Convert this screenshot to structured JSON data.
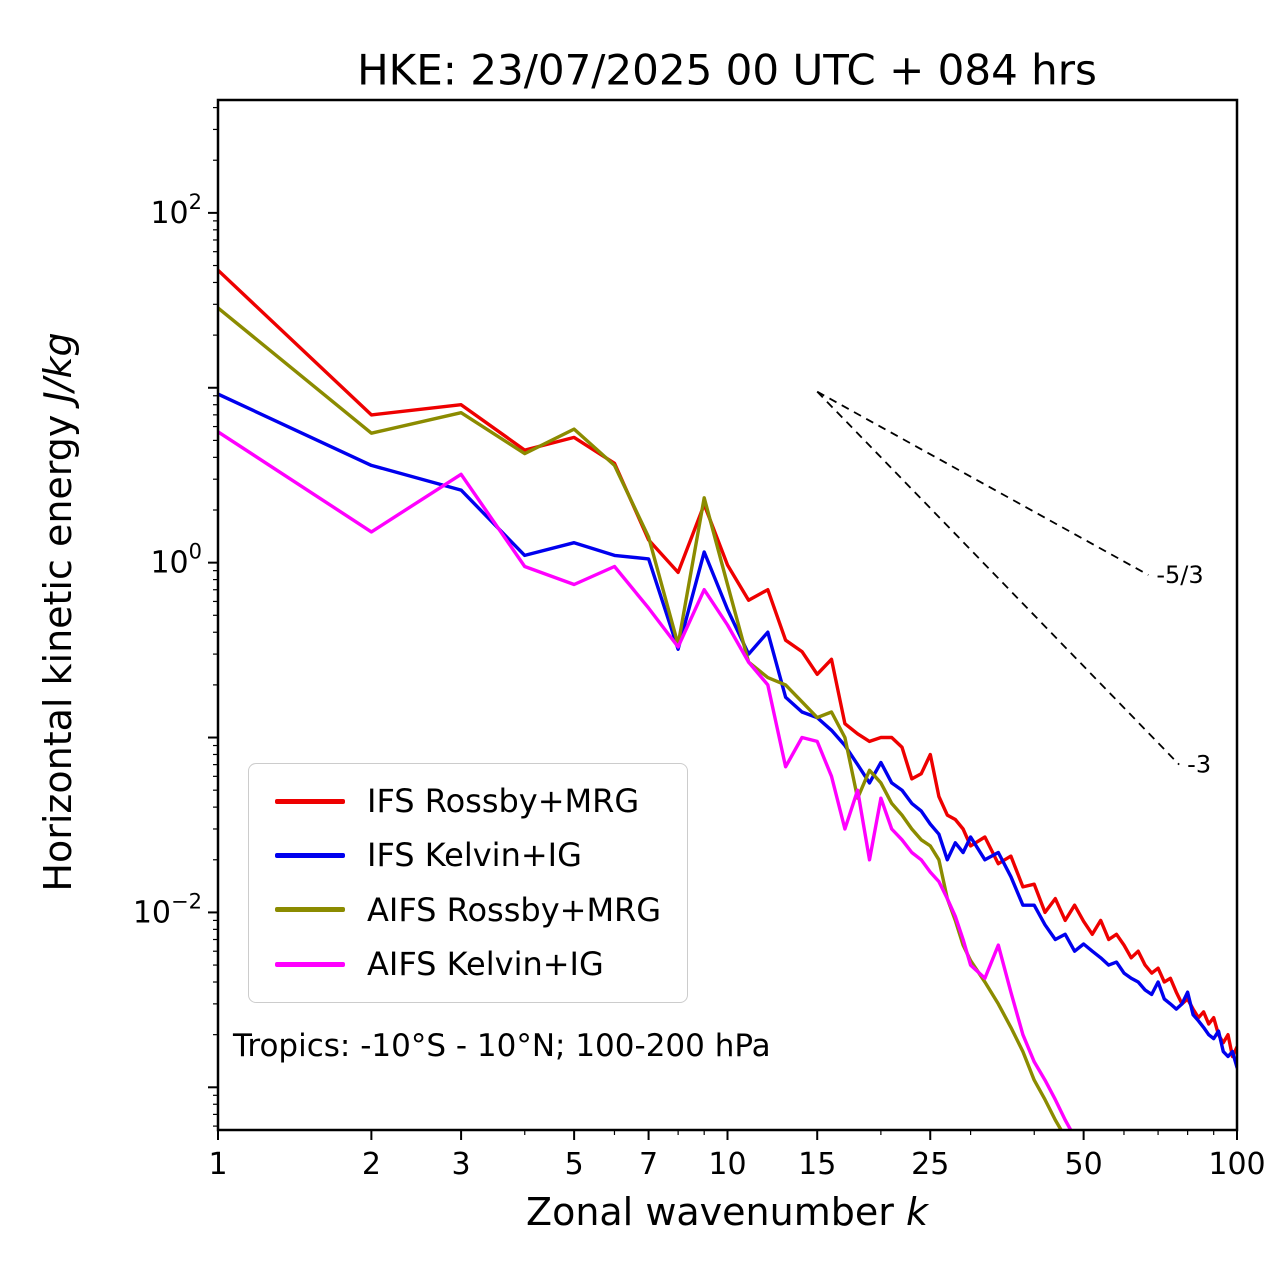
{
  "chart_data": {
    "type": "line",
    "title": "HKE: 23/07/2025 00 UTC + 084 hrs",
    "xlabel_text": "Zonal wavenumber ",
    "xlabel_math": "k",
    "ylabel_text": "Horizontal kinetic energy ",
    "ylabel_math": "J/kg",
    "annotation": "Tropics: -10°S - 10°N; 100-200 hPa",
    "xscale": "log",
    "yscale": "log",
    "xlim": [
      1,
      100
    ],
    "ylim": [
      0.00057,
      442
    ],
    "xticks_major": [
      1,
      2,
      3,
      5,
      7,
      10,
      15,
      25,
      50,
      100
    ],
    "xticks_minor": [
      4,
      6,
      8,
      9,
      20,
      30,
      40,
      60,
      70,
      80,
      90
    ],
    "yticks_decades": [
      -3,
      -2,
      -1,
      0,
      1,
      2
    ],
    "yticks_labeled_exponents": [
      2,
      0,
      -2
    ],
    "grid": false,
    "legend_position": "lower-left-inside",
    "series": [
      {
        "name": "IFS Rossby+MRG",
        "color": "#ee0000",
        "points": [
          [
            1,
            47
          ],
          [
            2,
            7.0
          ],
          [
            3,
            8.0
          ],
          [
            4,
            4.4
          ],
          [
            5,
            5.2
          ],
          [
            6,
            3.7
          ],
          [
            7,
            1.35
          ],
          [
            8,
            0.88
          ],
          [
            9,
            2.15
          ],
          [
            10,
            0.97
          ],
          [
            11,
            0.61
          ],
          [
            12,
            0.7
          ],
          [
            13,
            0.36
          ],
          [
            14,
            0.31
          ],
          [
            15,
            0.23
          ],
          [
            16,
            0.28
          ],
          [
            17,
            0.12
          ],
          [
            18,
            0.105
          ],
          [
            19,
            0.095
          ],
          [
            20,
            0.1
          ],
          [
            21,
            0.1
          ],
          [
            22,
            0.088
          ],
          [
            23,
            0.058
          ],
          [
            24,
            0.062
          ],
          [
            25,
            0.08
          ],
          [
            26,
            0.046
          ],
          [
            27,
            0.036
          ],
          [
            28,
            0.034
          ],
          [
            29,
            0.03
          ],
          [
            30,
            0.024
          ],
          [
            32,
            0.027
          ],
          [
            34,
            0.019
          ],
          [
            36,
            0.021
          ],
          [
            38,
            0.014
          ],
          [
            40,
            0.0145
          ],
          [
            42,
            0.01
          ],
          [
            44,
            0.012
          ],
          [
            46,
            0.009
          ],
          [
            48,
            0.011
          ],
          [
            50,
            0.0089
          ],
          [
            52,
            0.0075
          ],
          [
            54,
            0.009
          ],
          [
            56,
            0.007
          ],
          [
            58,
            0.0075
          ],
          [
            60,
            0.0065
          ],
          [
            62,
            0.0055
          ],
          [
            64,
            0.006
          ],
          [
            66,
            0.005
          ],
          [
            68,
            0.0045
          ],
          [
            70,
            0.0048
          ],
          [
            72,
            0.004
          ],
          [
            74,
            0.0042
          ],
          [
            76,
            0.0035
          ],
          [
            78,
            0.003
          ],
          [
            80,
            0.0032
          ],
          [
            82,
            0.0028
          ],
          [
            84,
            0.0025
          ],
          [
            86,
            0.0027
          ],
          [
            88,
            0.0023
          ],
          [
            90,
            0.0025
          ],
          [
            92,
            0.002
          ],
          [
            94,
            0.0018
          ],
          [
            96,
            0.002
          ],
          [
            98,
            0.0015
          ],
          [
            100,
            0.0017
          ]
        ]
      },
      {
        "name": "IFS Kelvin+IG",
        "color": "#0000ee",
        "points": [
          [
            1,
            9.2
          ],
          [
            2,
            3.6
          ],
          [
            3,
            2.6
          ],
          [
            4,
            1.1
          ],
          [
            5,
            1.3
          ],
          [
            6,
            1.1
          ],
          [
            7,
            1.05
          ],
          [
            8,
            0.32
          ],
          [
            9,
            1.15
          ],
          [
            10,
            0.54
          ],
          [
            11,
            0.3
          ],
          [
            12,
            0.4
          ],
          [
            13,
            0.17
          ],
          [
            14,
            0.14
          ],
          [
            15,
            0.13
          ],
          [
            16,
            0.11
          ],
          [
            17,
            0.09
          ],
          [
            18,
            0.07
          ],
          [
            19,
            0.055
          ],
          [
            20,
            0.072
          ],
          [
            21,
            0.055
          ],
          [
            22,
            0.05
          ],
          [
            23,
            0.042
          ],
          [
            24,
            0.038
          ],
          [
            25,
            0.032
          ],
          [
            26,
            0.028
          ],
          [
            27,
            0.02
          ],
          [
            28,
            0.025
          ],
          [
            29,
            0.022
          ],
          [
            30,
            0.027
          ],
          [
            32,
            0.02
          ],
          [
            34,
            0.022
          ],
          [
            36,
            0.016
          ],
          [
            38,
            0.011
          ],
          [
            40,
            0.011
          ],
          [
            42,
            0.0085
          ],
          [
            44,
            0.007
          ],
          [
            46,
            0.0075
          ],
          [
            48,
            0.006
          ],
          [
            50,
            0.0066
          ],
          [
            52,
            0.006
          ],
          [
            54,
            0.0055
          ],
          [
            56,
            0.005
          ],
          [
            58,
            0.0052
          ],
          [
            60,
            0.0045
          ],
          [
            62,
            0.0042
          ],
          [
            64,
            0.004
          ],
          [
            66,
            0.0036
          ],
          [
            68,
            0.0034
          ],
          [
            70,
            0.004
          ],
          [
            72,
            0.0032
          ],
          [
            74,
            0.003
          ],
          [
            76,
            0.0028
          ],
          [
            78,
            0.003
          ],
          [
            80,
            0.0035
          ],
          [
            82,
            0.0026
          ],
          [
            84,
            0.0024
          ],
          [
            86,
            0.0022
          ],
          [
            88,
            0.002
          ],
          [
            90,
            0.0019
          ],
          [
            92,
            0.0021
          ],
          [
            94,
            0.0016
          ],
          [
            96,
            0.0015
          ],
          [
            98,
            0.0016
          ],
          [
            100,
            0.0013
          ]
        ]
      },
      {
        "name": "AIFS Rossby+MRG",
        "color": "#8b8b00",
        "points": [
          [
            1,
            28.6
          ],
          [
            2,
            5.5
          ],
          [
            3,
            7.2
          ],
          [
            4,
            4.2
          ],
          [
            5,
            5.8
          ],
          [
            6,
            3.6
          ],
          [
            7,
            1.4
          ],
          [
            8,
            0.34
          ],
          [
            9,
            2.35
          ],
          [
            10,
            0.75
          ],
          [
            11,
            0.27
          ],
          [
            12,
            0.22
          ],
          [
            13,
            0.2
          ],
          [
            14,
            0.16
          ],
          [
            15,
            0.13
          ],
          [
            16,
            0.14
          ],
          [
            17,
            0.1
          ],
          [
            18,
            0.045
          ],
          [
            19,
            0.065
          ],
          [
            20,
            0.055
          ],
          [
            21,
            0.042
          ],
          [
            22,
            0.036
          ],
          [
            23,
            0.03
          ],
          [
            24,
            0.026
          ],
          [
            25,
            0.024
          ],
          [
            26,
            0.02
          ],
          [
            27,
            0.012
          ],
          [
            28,
            0.009
          ],
          [
            29,
            0.0065
          ],
          [
            30,
            0.0053
          ],
          [
            32,
            0.004
          ],
          [
            34,
            0.003
          ],
          [
            36,
            0.0022
          ],
          [
            38,
            0.0016
          ],
          [
            40,
            0.0011
          ],
          [
            42,
            0.00085
          ],
          [
            44,
            0.00065
          ],
          [
            46,
            0.00052
          ],
          [
            48,
            0.00042
          ],
          [
            50,
            0.00034
          ],
          [
            53,
            0.00027
          ],
          [
            56,
            0.00022
          ]
        ]
      },
      {
        "name": "AIFS Kelvin+IG",
        "color": "#ff00ff",
        "points": [
          [
            1,
            5.6
          ],
          [
            2,
            1.5
          ],
          [
            3,
            3.2
          ],
          [
            4,
            0.95
          ],
          [
            5,
            0.75
          ],
          [
            6,
            0.95
          ],
          [
            7,
            0.55
          ],
          [
            8,
            0.33
          ],
          [
            9,
            0.7
          ],
          [
            10,
            0.44
          ],
          [
            11,
            0.27
          ],
          [
            12,
            0.2
          ],
          [
            13,
            0.068
          ],
          [
            14,
            0.1
          ],
          [
            15,
            0.095
          ],
          [
            16,
            0.06
          ],
          [
            17,
            0.03
          ],
          [
            18,
            0.05
          ],
          [
            19,
            0.02
          ],
          [
            20,
            0.045
          ],
          [
            21,
            0.03
          ],
          [
            22,
            0.026
          ],
          [
            23,
            0.022
          ],
          [
            24,
            0.02
          ],
          [
            25,
            0.017
          ],
          [
            26,
            0.015
          ],
          [
            27,
            0.012
          ],
          [
            28,
            0.0095
          ],
          [
            29,
            0.007
          ],
          [
            30,
            0.005
          ],
          [
            32,
            0.0042
          ],
          [
            34,
            0.0065
          ],
          [
            36,
            0.0035
          ],
          [
            38,
            0.002
          ],
          [
            40,
            0.0014
          ],
          [
            42,
            0.0011
          ],
          [
            44,
            0.00085
          ],
          [
            46,
            0.00065
          ],
          [
            48,
            0.00052
          ],
          [
            50,
            0.00042
          ],
          [
            53,
            0.00032
          ],
          [
            56,
            0.00028
          ]
        ]
      }
    ],
    "reference_lines": [
      {
        "label": "-5/3",
        "slope": "-5/3",
        "from": [
          15,
          9.5
        ],
        "to": [
          67,
          0.85
        ]
      },
      {
        "label": "-3",
        "slope": "-3",
        "from": [
          15,
          9.5
        ],
        "to": [
          77,
          0.07
        ]
      }
    ]
  }
}
